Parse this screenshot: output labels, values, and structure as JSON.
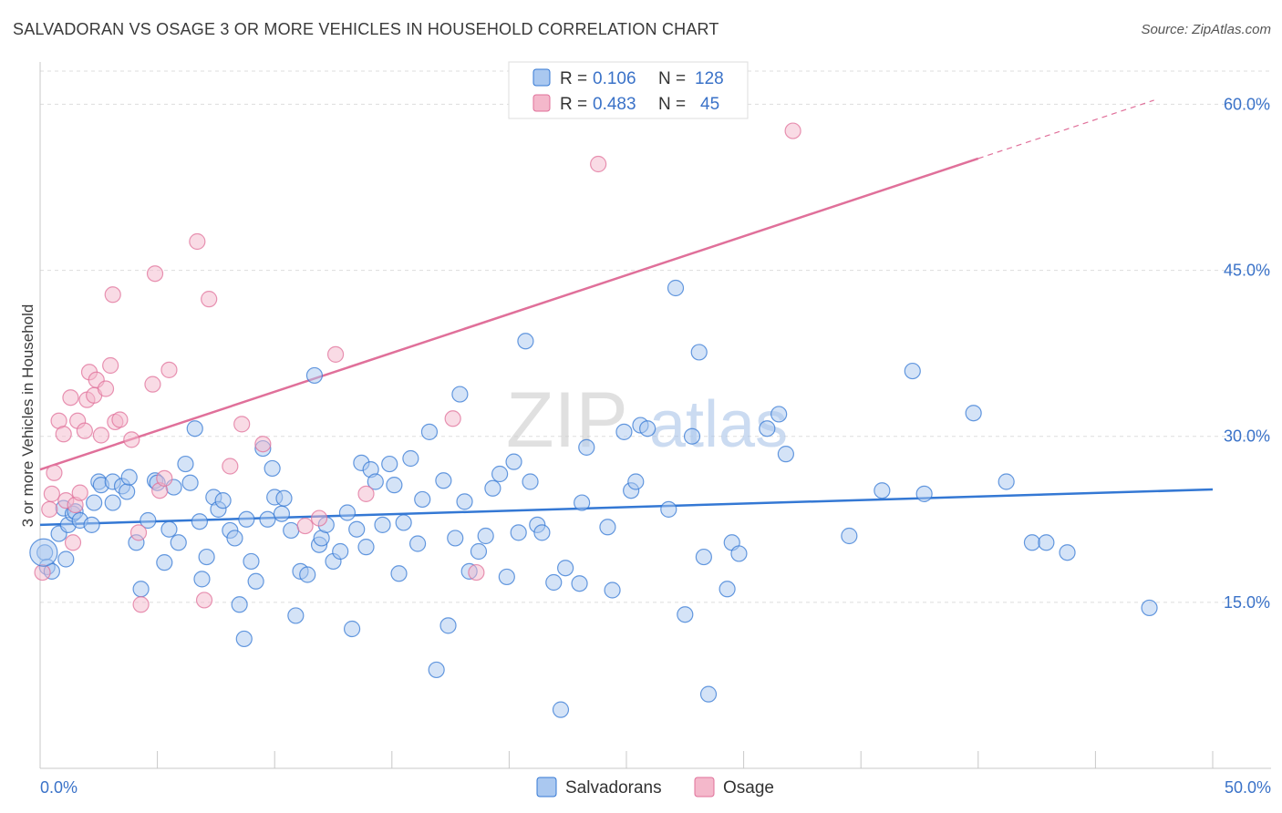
{
  "header": {
    "title": "SALVADORAN VS OSAGE 3 OR MORE VEHICLES IN HOUSEHOLD CORRELATION CHART",
    "source": "Source: ZipAtlas.com"
  },
  "colors": {
    "blue": "#3478d4",
    "blue_fill": "#aac8f0",
    "pink": "#e0709a",
    "pink_fill": "#f4b8cb",
    "axis_text": "#3a72c8",
    "grid": "#dddddd",
    "watermark_zip": "#cccccc",
    "watermark_atlas": "#a9c4e8"
  },
  "chart_data": {
    "type": "scatter",
    "title": "SALVADORAN VS OSAGE 3 OR MORE VEHICLES IN HOUSEHOLD CORRELATION CHART",
    "ylabel": "3 or more Vehicles in Household",
    "xlabel": "",
    "xlim": [
      0,
      50
    ],
    "ylim": [
      0,
      63
    ],
    "x_tick_labels": [
      "0.0%",
      "50.0%"
    ],
    "y_ticks": [
      {
        "value": 15,
        "label": "15.0%"
      },
      {
        "value": 30,
        "label": "30.0%"
      },
      {
        "value": 45,
        "label": "45.0%"
      },
      {
        "value": 60,
        "label": "60.0%"
      }
    ],
    "legend": {
      "rows": [
        {
          "r_label": "R =",
          "r_value": "0.106",
          "n_label": "N =",
          "n_value": "128"
        },
        {
          "r_label": "R =",
          "r_value": "0.483",
          "n_label": "N =",
          "n_value": "45"
        }
      ],
      "bottom": [
        "Salvadorans",
        "Osage"
      ]
    },
    "watermark": {
      "zip": "ZIP",
      "atlas": "atlas"
    },
    "series": [
      {
        "name": "Salvadorans",
        "trend": {
          "x0": 0,
          "y0": 22.0,
          "x1": 50,
          "y1": 25.2
        },
        "points": [
          [
            0.2,
            19.5
          ],
          [
            0.3,
            18.2
          ],
          [
            0.5,
            17.8
          ],
          [
            0.8,
            21.2
          ],
          [
            1.0,
            23.5
          ],
          [
            1.1,
            18.9
          ],
          [
            1.2,
            22.0
          ],
          [
            1.4,
            23.0
          ],
          [
            1.5,
            23.2
          ],
          [
            1.7,
            22.4
          ],
          [
            2.2,
            22.0
          ],
          [
            2.3,
            24.0
          ],
          [
            2.5,
            25.9
          ],
          [
            2.6,
            25.6
          ],
          [
            3.1,
            25.9
          ],
          [
            3.1,
            24.0
          ],
          [
            3.5,
            25.5
          ],
          [
            3.7,
            25.0
          ],
          [
            3.8,
            26.3
          ],
          [
            4.1,
            20.4
          ],
          [
            4.3,
            16.2
          ],
          [
            4.6,
            22.4
          ],
          [
            4.9,
            26.0
          ],
          [
            5.0,
            25.8
          ],
          [
            5.3,
            18.6
          ],
          [
            5.5,
            21.6
          ],
          [
            5.7,
            25.4
          ],
          [
            5.9,
            20.4
          ],
          [
            6.2,
            27.5
          ],
          [
            6.4,
            25.8
          ],
          [
            6.6,
            30.7
          ],
          [
            6.8,
            22.3
          ],
          [
            6.9,
            17.1
          ],
          [
            7.1,
            19.1
          ],
          [
            7.4,
            24.5
          ],
          [
            7.6,
            23.4
          ],
          [
            7.8,
            24.2
          ],
          [
            8.1,
            21.5
          ],
          [
            8.3,
            20.8
          ],
          [
            8.5,
            14.8
          ],
          [
            8.7,
            11.7
          ],
          [
            8.8,
            22.5
          ],
          [
            9.0,
            18.7
          ],
          [
            9.2,
            16.9
          ],
          [
            9.5,
            28.9
          ],
          [
            9.7,
            22.5
          ],
          [
            9.9,
            27.1
          ],
          [
            10.0,
            24.5
          ],
          [
            10.3,
            23.0
          ],
          [
            10.4,
            24.4
          ],
          [
            10.7,
            21.5
          ],
          [
            10.9,
            13.8
          ],
          [
            11.1,
            17.8
          ],
          [
            11.4,
            17.5
          ],
          [
            11.7,
            35.5
          ],
          [
            11.9,
            20.2
          ],
          [
            12.0,
            20.8
          ],
          [
            12.2,
            22.0
          ],
          [
            12.5,
            18.7
          ],
          [
            12.8,
            19.6
          ],
          [
            13.1,
            23.1
          ],
          [
            13.3,
            12.6
          ],
          [
            13.5,
            21.6
          ],
          [
            13.7,
            27.6
          ],
          [
            13.9,
            20.0
          ],
          [
            14.1,
            27.0
          ],
          [
            14.3,
            25.9
          ],
          [
            14.6,
            22.0
          ],
          [
            14.9,
            27.5
          ],
          [
            15.1,
            25.6
          ],
          [
            15.3,
            17.6
          ],
          [
            15.5,
            22.2
          ],
          [
            15.8,
            28.0
          ],
          [
            16.1,
            20.3
          ],
          [
            16.3,
            24.3
          ],
          [
            16.6,
            30.4
          ],
          [
            16.9,
            8.9
          ],
          [
            17.2,
            26.0
          ],
          [
            17.4,
            12.9
          ],
          [
            17.7,
            20.8
          ],
          [
            17.9,
            33.8
          ],
          [
            18.1,
            24.1
          ],
          [
            18.3,
            17.8
          ],
          [
            18.7,
            19.6
          ],
          [
            19.0,
            21.0
          ],
          [
            19.3,
            25.3
          ],
          [
            19.6,
            26.6
          ],
          [
            19.9,
            17.3
          ],
          [
            20.2,
            27.7
          ],
          [
            20.4,
            21.3
          ],
          [
            20.7,
            38.6
          ],
          [
            20.9,
            25.9
          ],
          [
            21.2,
            22.0
          ],
          [
            21.4,
            21.3
          ],
          [
            21.9,
            16.8
          ],
          [
            22.2,
            5.3
          ],
          [
            22.4,
            18.1
          ],
          [
            23.0,
            16.7
          ],
          [
            23.1,
            24.0
          ],
          [
            23.3,
            29.0
          ],
          [
            24.2,
            21.8
          ],
          [
            24.4,
            16.1
          ],
          [
            24.9,
            30.4
          ],
          [
            25.2,
            25.1
          ],
          [
            25.4,
            25.9
          ],
          [
            25.6,
            31.0
          ],
          [
            25.9,
            30.7
          ],
          [
            26.8,
            23.4
          ],
          [
            27.1,
            43.4
          ],
          [
            27.5,
            13.9
          ],
          [
            27.8,
            30.0
          ],
          [
            28.1,
            37.6
          ],
          [
            28.3,
            19.1
          ],
          [
            28.5,
            6.7
          ],
          [
            29.3,
            16.2
          ],
          [
            29.5,
            20.4
          ],
          [
            29.8,
            19.4
          ],
          [
            31.0,
            30.7
          ],
          [
            31.5,
            32.0
          ],
          [
            31.8,
            28.4
          ],
          [
            34.5,
            21.0
          ],
          [
            35.9,
            25.1
          ],
          [
            37.2,
            35.9
          ],
          [
            37.7,
            24.8
          ],
          [
            39.8,
            32.1
          ],
          [
            41.2,
            25.9
          ],
          [
            42.3,
            20.4
          ],
          [
            42.9,
            20.4
          ],
          [
            43.8,
            19.5
          ],
          [
            47.3,
            14.5
          ]
        ]
      },
      {
        "name": "Osage",
        "trend": {
          "x0": 0,
          "y0": 27.0,
          "x1": 40,
          "y1": 55.1
        },
        "points": [
          [
            0.1,
            17.7
          ],
          [
            0.4,
            23.4
          ],
          [
            0.5,
            24.8
          ],
          [
            0.6,
            26.7
          ],
          [
            0.8,
            31.4
          ],
          [
            1.0,
            30.2
          ],
          [
            1.1,
            24.2
          ],
          [
            1.3,
            33.5
          ],
          [
            1.4,
            20.4
          ],
          [
            1.5,
            23.8
          ],
          [
            1.6,
            31.4
          ],
          [
            1.7,
            24.9
          ],
          [
            1.9,
            30.5
          ],
          [
            2.0,
            33.3
          ],
          [
            2.1,
            35.8
          ],
          [
            2.3,
            33.7
          ],
          [
            2.4,
            35.1
          ],
          [
            2.6,
            30.1
          ],
          [
            2.8,
            34.3
          ],
          [
            3.0,
            36.4
          ],
          [
            3.1,
            42.8
          ],
          [
            3.2,
            31.3
          ],
          [
            3.4,
            31.5
          ],
          [
            3.9,
            29.7
          ],
          [
            4.2,
            21.3
          ],
          [
            4.3,
            14.8
          ],
          [
            4.8,
            34.7
          ],
          [
            4.9,
            44.7
          ],
          [
            5.1,
            25.1
          ],
          [
            5.3,
            26.2
          ],
          [
            5.5,
            36.0
          ],
          [
            6.7,
            47.6
          ],
          [
            7.0,
            15.2
          ],
          [
            7.2,
            42.4
          ],
          [
            8.1,
            27.3
          ],
          [
            8.6,
            31.1
          ],
          [
            9.5,
            29.3
          ],
          [
            11.3,
            21.9
          ],
          [
            11.9,
            22.6
          ],
          [
            12.6,
            37.4
          ],
          [
            13.9,
            24.8
          ],
          [
            17.6,
            31.6
          ],
          [
            18.6,
            17.7
          ],
          [
            23.8,
            54.6
          ],
          [
            32.1,
            57.6
          ]
        ]
      }
    ]
  }
}
